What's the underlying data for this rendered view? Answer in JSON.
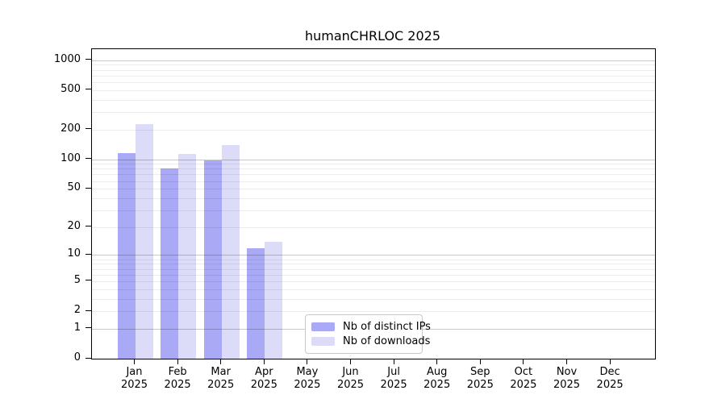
{
  "title": "humanCHRLOC 2025",
  "chart_data": {
    "type": "bar",
    "title": "humanCHRLOC 2025",
    "categories": [
      "Jan",
      "Feb",
      "Mar",
      "Apr",
      "May",
      "Jun",
      "Jul",
      "Aug",
      "Sep",
      "Oct",
      "Nov",
      "Dec"
    ],
    "x_year": "2025",
    "series": [
      {
        "name": "Nb of distinct IPs",
        "color": "#a9a9f5",
        "values": [
          115,
          81,
          97,
          12,
          0,
          0,
          0,
          0,
          0,
          0,
          0,
          0
        ]
      },
      {
        "name": "Nb of downloads",
        "color": "#dcdcf8",
        "values": [
          228,
          114,
          140,
          14,
          0,
          0,
          0,
          0,
          0,
          0,
          0,
          0
        ]
      }
    ],
    "y_axis": {
      "scale": "log10(1+y)",
      "ticks": [
        0,
        1,
        2,
        5,
        10,
        20,
        50,
        100,
        200,
        500,
        1000
      ],
      "major_gridlines": [
        1,
        10,
        100,
        1000
      ],
      "minor_gridlines": [
        2,
        5,
        20,
        50,
        200,
        500,
        3,
        4,
        6,
        7,
        8,
        9,
        30,
        40,
        60,
        70,
        80,
        90,
        300,
        400,
        600,
        700,
        800,
        900
      ],
      "ylim": [
        0,
        1290
      ]
    },
    "grid": "horizontal",
    "legend_position": "bottom-center-inside"
  },
  "legend": {
    "items": [
      {
        "label": "Nb of distinct IPs"
      },
      {
        "label": "Nb of downloads"
      }
    ]
  }
}
